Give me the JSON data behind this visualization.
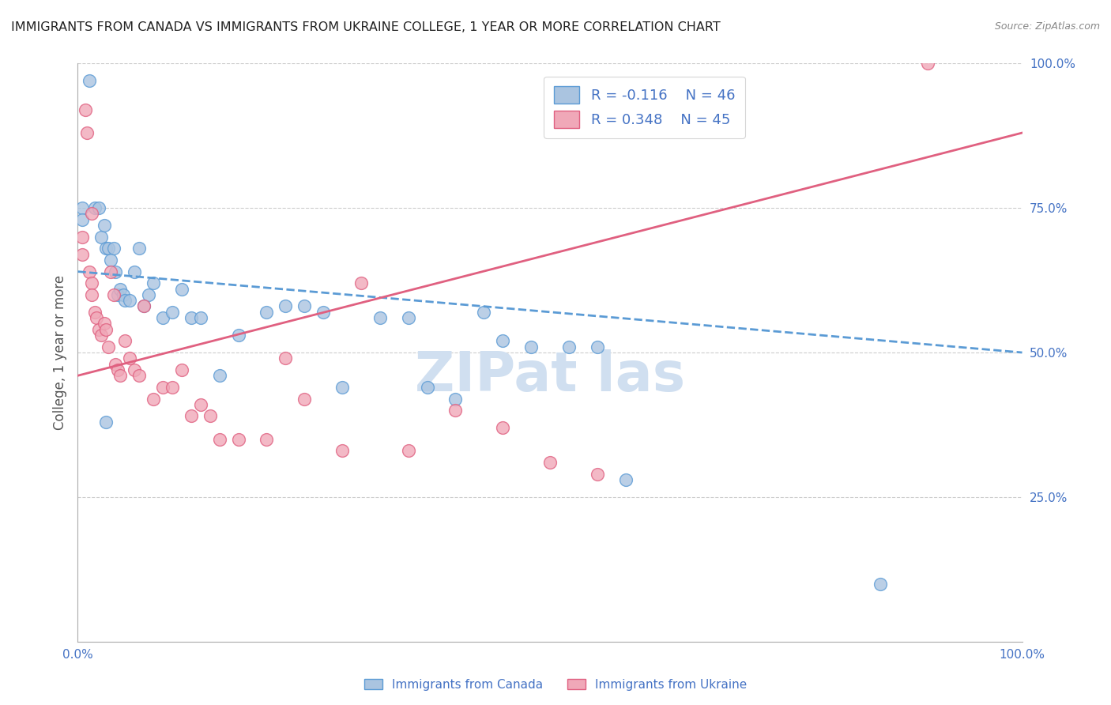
{
  "title": "IMMIGRANTS FROM CANADA VS IMMIGRANTS FROM UKRAINE COLLEGE, 1 YEAR OR MORE CORRELATION CHART",
  "source": "Source: ZipAtlas.com",
  "ylabel": "College, 1 year or more",
  "xlim": [
    0,
    1.0
  ],
  "ylim": [
    0,
    1.0
  ],
  "xtick_labels": [
    "0.0%",
    "100.0%"
  ],
  "xtick_positions": [
    0.0,
    1.0
  ],
  "ytick_labels": [
    "100.0%",
    "75.0%",
    "50.0%",
    "25.0%"
  ],
  "ytick_positions": [
    1.0,
    0.75,
    0.5,
    0.25
  ],
  "legend_r_canada": "R = -0.116",
  "legend_n_canada": "N = 46",
  "legend_r_ukraine": "R = 0.348",
  "legend_n_ukraine": "N = 45",
  "canada_color": "#aac4e0",
  "ukraine_color": "#f0a8b8",
  "canada_line_color": "#5b9bd5",
  "ukraine_line_color": "#e06080",
  "title_color": "#222222",
  "axis_label_color": "#555555",
  "tick_label_color": "#4472c4",
  "watermark_color": "#d0dff0",
  "background_color": "#ffffff",
  "grid_color": "#cccccc",
  "canada_x": [
    0.005,
    0.005,
    0.012,
    0.018,
    0.022,
    0.025,
    0.028,
    0.03,
    0.032,
    0.035,
    0.038,
    0.04,
    0.042,
    0.045,
    0.048,
    0.05,
    0.055,
    0.06,
    0.065,
    0.07,
    0.075,
    0.08,
    0.09,
    0.1,
    0.11,
    0.12,
    0.13,
    0.15,
    0.17,
    0.2,
    0.22,
    0.24,
    0.26,
    0.28,
    0.32,
    0.35,
    0.37,
    0.4,
    0.43,
    0.45,
    0.48,
    0.52,
    0.55,
    0.58,
    0.85,
    0.03
  ],
  "canada_y": [
    0.75,
    0.73,
    0.97,
    0.75,
    0.75,
    0.7,
    0.72,
    0.68,
    0.68,
    0.66,
    0.68,
    0.64,
    0.6,
    0.61,
    0.6,
    0.59,
    0.59,
    0.64,
    0.68,
    0.58,
    0.6,
    0.62,
    0.56,
    0.57,
    0.61,
    0.56,
    0.56,
    0.46,
    0.53,
    0.57,
    0.58,
    0.58,
    0.57,
    0.44,
    0.56,
    0.56,
    0.44,
    0.42,
    0.57,
    0.52,
    0.51,
    0.51,
    0.51,
    0.28,
    0.1,
    0.38
  ],
  "ukraine_x": [
    0.005,
    0.005,
    0.008,
    0.01,
    0.012,
    0.015,
    0.015,
    0.018,
    0.02,
    0.022,
    0.025,
    0.028,
    0.03,
    0.032,
    0.035,
    0.038,
    0.04,
    0.042,
    0.045,
    0.05,
    0.055,
    0.06,
    0.065,
    0.07,
    0.08,
    0.09,
    0.1,
    0.11,
    0.12,
    0.13,
    0.14,
    0.15,
    0.17,
    0.2,
    0.22,
    0.24,
    0.28,
    0.3,
    0.35,
    0.4,
    0.45,
    0.5,
    0.55,
    0.9,
    0.015
  ],
  "ukraine_y": [
    0.7,
    0.67,
    0.92,
    0.88,
    0.64,
    0.62,
    0.6,
    0.57,
    0.56,
    0.54,
    0.53,
    0.55,
    0.54,
    0.51,
    0.64,
    0.6,
    0.48,
    0.47,
    0.46,
    0.52,
    0.49,
    0.47,
    0.46,
    0.58,
    0.42,
    0.44,
    0.44,
    0.47,
    0.39,
    0.41,
    0.39,
    0.35,
    0.35,
    0.35,
    0.49,
    0.42,
    0.33,
    0.62,
    0.33,
    0.4,
    0.37,
    0.31,
    0.29,
    1.0,
    0.74
  ],
  "canada_trend_y_start": 0.64,
  "canada_trend_y_end": 0.5,
  "ukraine_trend_y_start": 0.46,
  "ukraine_trend_y_end": 0.88
}
